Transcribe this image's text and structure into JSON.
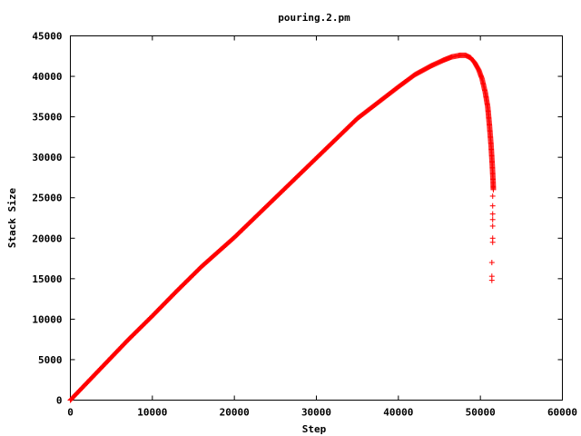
{
  "chart_data": {
    "type": "scatter",
    "title": "pouring.2.pm",
    "xlabel": "Step",
    "ylabel": "Stack Size",
    "xlim": [
      0,
      60000
    ],
    "ylim": [
      0,
      45000
    ],
    "xticks": [
      0,
      10000,
      20000,
      30000,
      40000,
      50000,
      60000
    ],
    "yticks": [
      0,
      5000,
      10000,
      15000,
      20000,
      25000,
      30000,
      35000,
      40000,
      45000
    ],
    "grid": false,
    "marker": "plus",
    "series": [
      {
        "color": "#ff0000",
        "points": [
          [
            0,
            0
          ],
          [
            7000,
            7400
          ],
          [
            10000,
            10400
          ],
          [
            13000,
            13500
          ],
          [
            16000,
            16500
          ],
          [
            20000,
            20100
          ],
          [
            25000,
            25000
          ],
          [
            30000,
            29900
          ],
          [
            35000,
            34800
          ],
          [
            40000,
            38700
          ],
          [
            42000,
            40200
          ],
          [
            44000,
            41300
          ],
          [
            45500,
            42000
          ],
          [
            46500,
            42400
          ],
          [
            47500,
            42600
          ],
          [
            48200,
            42600
          ],
          [
            48800,
            42300
          ],
          [
            49300,
            41700
          ],
          [
            49800,
            40800
          ],
          [
            50200,
            39700
          ],
          [
            50600,
            38000
          ],
          [
            50900,
            36200
          ],
          [
            51100,
            34000
          ],
          [
            51300,
            31500
          ],
          [
            51450,
            29000
          ],
          [
            51550,
            27000
          ],
          [
            51580,
            26000
          ],
          [
            51500,
            25200
          ],
          [
            51500,
            24000
          ],
          [
            51500,
            23000
          ],
          [
            51500,
            22300
          ],
          [
            51500,
            21500
          ],
          [
            51500,
            20000
          ],
          [
            51500,
            19500
          ],
          [
            51400,
            17000
          ],
          [
            51400,
            15300
          ],
          [
            51400,
            14800
          ]
        ]
      }
    ]
  }
}
